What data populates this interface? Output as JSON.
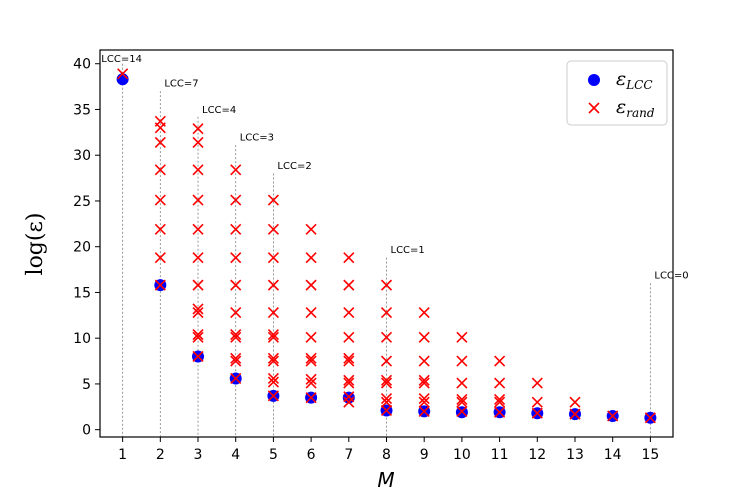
{
  "chart_data": {
    "type": "scatter",
    "xlabel": "M",
    "ylabel": "log(ε)",
    "xlim": [
      0.4,
      15.6
    ],
    "ylim": [
      -0.8,
      41.5
    ],
    "xticks": [
      1,
      2,
      3,
      4,
      5,
      6,
      7,
      8,
      9,
      10,
      11,
      12,
      13,
      14,
      15
    ],
    "yticks": [
      0,
      5,
      10,
      15,
      20,
      25,
      30,
      35,
      40
    ],
    "grid": false,
    "legend_position": "top-right",
    "colors": {
      "lcc": "#0000ff",
      "rand": "#ff0000",
      "annotation_line": "#808080"
    },
    "series": [
      {
        "name": "ε_LCC",
        "legend_main": "ε",
        "legend_sub": "LCC",
        "marker": "circle",
        "points": [
          [
            1,
            38.3
          ],
          [
            2,
            15.8
          ],
          [
            3,
            8.0
          ],
          [
            4,
            5.6
          ],
          [
            5,
            3.7
          ],
          [
            6,
            3.5
          ],
          [
            7,
            3.5
          ],
          [
            8,
            2.1
          ],
          [
            9,
            2.0
          ],
          [
            10,
            1.9
          ],
          [
            11,
            1.9
          ],
          [
            12,
            1.8
          ],
          [
            13,
            1.7
          ],
          [
            14,
            1.5
          ],
          [
            15,
            1.3
          ]
        ]
      },
      {
        "name": "ε_rand",
        "legend_main": "ε",
        "legend_sub": "rand",
        "marker": "x",
        "points": [
          [
            1,
            38.9
          ],
          [
            2,
            33.7
          ],
          [
            2,
            33.0
          ],
          [
            2,
            31.4
          ],
          [
            2,
            28.4
          ],
          [
            2,
            25.1
          ],
          [
            2,
            21.9
          ],
          [
            2,
            18.8
          ],
          [
            2,
            15.8
          ],
          [
            3,
            32.9
          ],
          [
            3,
            31.4
          ],
          [
            3,
            28.4
          ],
          [
            3,
            25.1
          ],
          [
            3,
            21.9
          ],
          [
            3,
            18.8
          ],
          [
            3,
            15.8
          ],
          [
            3,
            13.2
          ],
          [
            3,
            12.8
          ],
          [
            3,
            10.4
          ],
          [
            3,
            10.1
          ],
          [
            3,
            8.0
          ],
          [
            4,
            28.4
          ],
          [
            4,
            25.1
          ],
          [
            4,
            21.9
          ],
          [
            4,
            18.8
          ],
          [
            4,
            15.8
          ],
          [
            4,
            12.8
          ],
          [
            4,
            10.4
          ],
          [
            4,
            10.1
          ],
          [
            4,
            7.8
          ],
          [
            4,
            7.5
          ],
          [
            4,
            5.6
          ],
          [
            5,
            25.1
          ],
          [
            5,
            21.9
          ],
          [
            5,
            18.8
          ],
          [
            5,
            15.8
          ],
          [
            5,
            12.8
          ],
          [
            5,
            10.4
          ],
          [
            5,
            10.1
          ],
          [
            5,
            7.8
          ],
          [
            5,
            7.5
          ],
          [
            5,
            5.6
          ],
          [
            5,
            5.2
          ],
          [
            5,
            3.7
          ],
          [
            6,
            21.9
          ],
          [
            6,
            18.8
          ],
          [
            6,
            15.8
          ],
          [
            6,
            12.8
          ],
          [
            6,
            10.1
          ],
          [
            6,
            7.8
          ],
          [
            6,
            7.5
          ],
          [
            6,
            5.5
          ],
          [
            6,
            5.1
          ],
          [
            6,
            3.5
          ],
          [
            7,
            18.8
          ],
          [
            7,
            15.8
          ],
          [
            7,
            12.8
          ],
          [
            7,
            10.1
          ],
          [
            7,
            7.8
          ],
          [
            7,
            7.5
          ],
          [
            7,
            5.4
          ],
          [
            7,
            5.1
          ],
          [
            7,
            3.6
          ],
          [
            7,
            3.0
          ],
          [
            8,
            15.8
          ],
          [
            8,
            12.8
          ],
          [
            8,
            10.1
          ],
          [
            8,
            7.5
          ],
          [
            8,
            5.4
          ],
          [
            8,
            5.1
          ],
          [
            8,
            3.4
          ],
          [
            8,
            3.0
          ],
          [
            8,
            2.1
          ],
          [
            9,
            12.8
          ],
          [
            9,
            10.1
          ],
          [
            9,
            7.5
          ],
          [
            9,
            5.4
          ],
          [
            9,
            5.1
          ],
          [
            9,
            3.4
          ],
          [
            9,
            3.0
          ],
          [
            9,
            2.0
          ],
          [
            10,
            10.1
          ],
          [
            10,
            7.5
          ],
          [
            10,
            5.1
          ],
          [
            10,
            3.3
          ],
          [
            10,
            3.0
          ],
          [
            10,
            2.0
          ],
          [
            11,
            7.5
          ],
          [
            11,
            5.1
          ],
          [
            11,
            3.3
          ],
          [
            11,
            3.0
          ],
          [
            11,
            1.9
          ],
          [
            12,
            5.1
          ],
          [
            12,
            3.0
          ],
          [
            12,
            1.8
          ],
          [
            13,
            3.0
          ],
          [
            13,
            1.7
          ],
          [
            14,
            1.5
          ],
          [
            15,
            1.3
          ]
        ]
      }
    ],
    "annotations": [
      {
        "text": "LCC=14",
        "x": 1,
        "label_y": 40.2,
        "line_top": 40.0
      },
      {
        "text": "LCC=7",
        "x": 2,
        "label_y": 37.5,
        "line_top": 37.0
      },
      {
        "text": "LCC=4",
        "x": 3,
        "label_y": 34.6,
        "line_top": 34.2
      },
      {
        "text": "LCC=3",
        "x": 4,
        "label_y": 31.6,
        "line_top": 31.1
      },
      {
        "text": "LCC=2",
        "x": 5,
        "label_y": 28.5,
        "line_top": 28.0
      },
      {
        "text": "LCC=1",
        "x": 8,
        "label_y": 19.3,
        "line_top": 18.8
      },
      {
        "text": "LCC=0",
        "x": 15,
        "label_y": 16.5,
        "line_top": 16.0
      }
    ]
  }
}
